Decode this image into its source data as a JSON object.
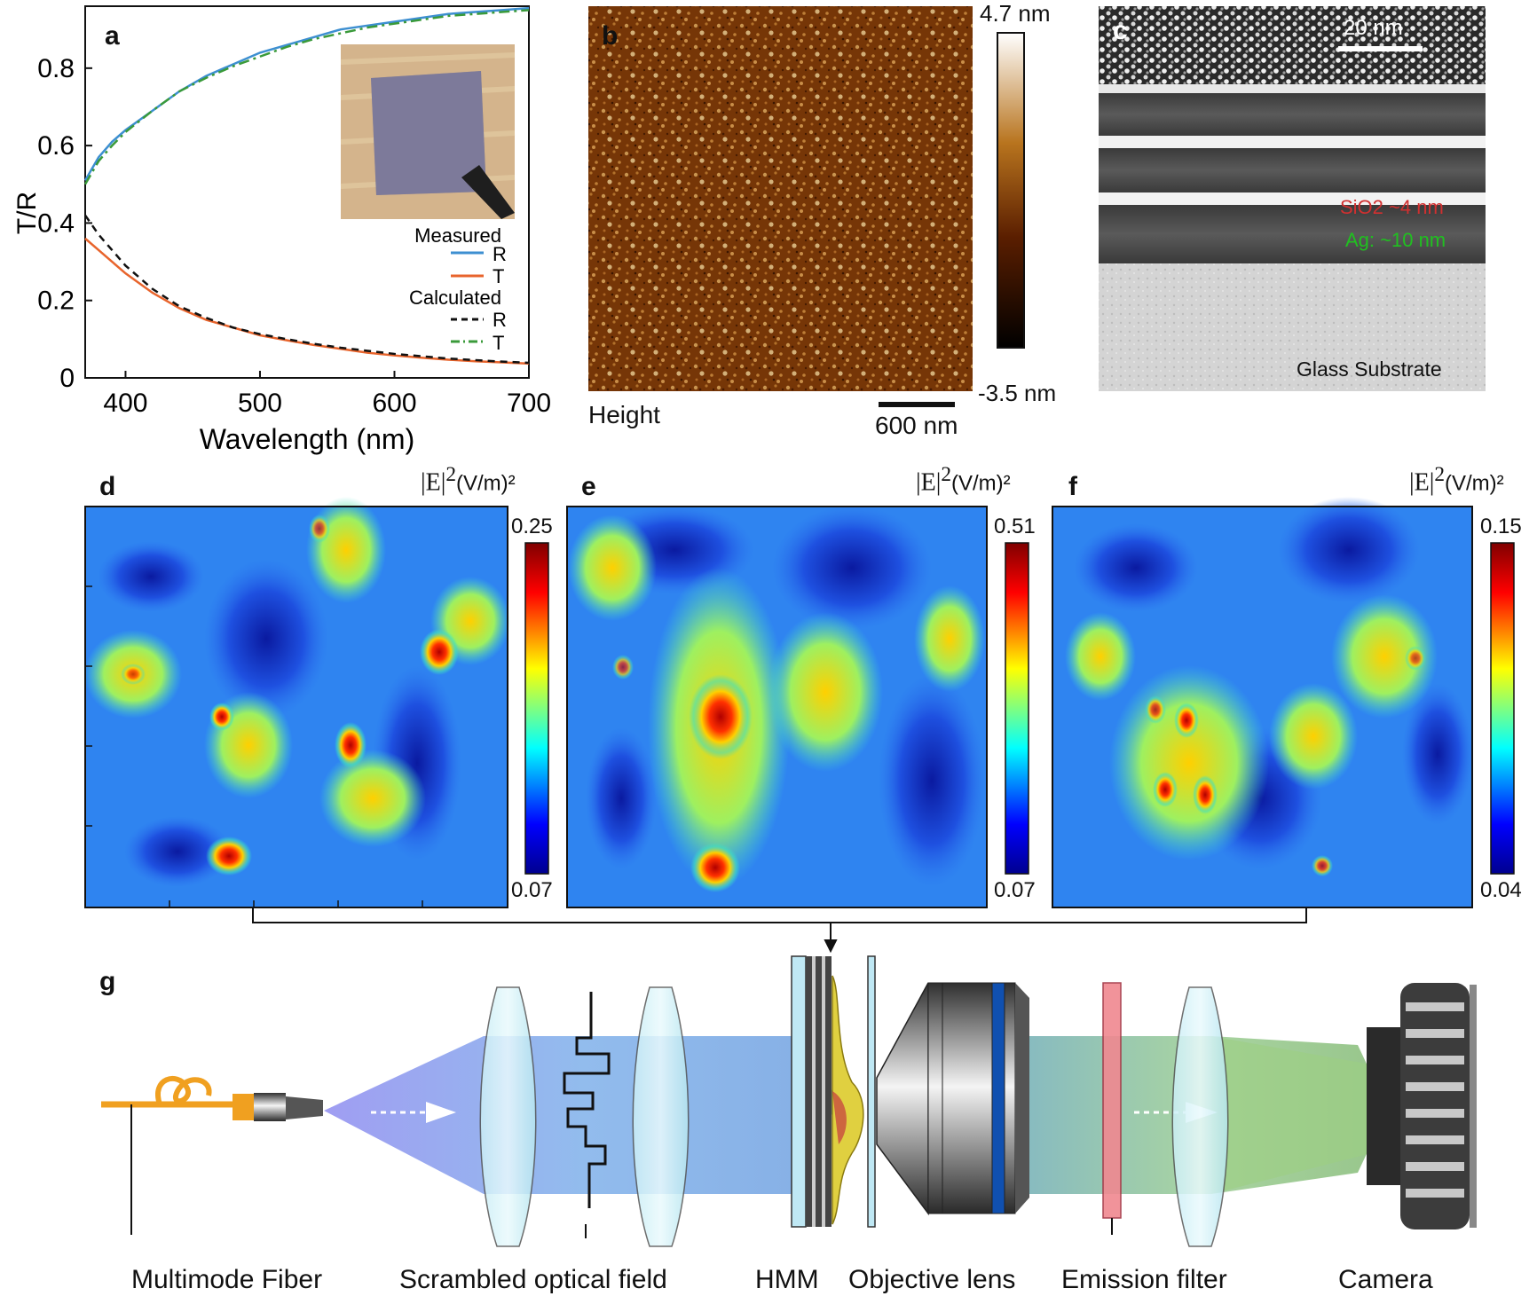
{
  "panels": {
    "a": "a",
    "b": "b",
    "c": "c",
    "d": "d",
    "e": "e",
    "f": "f",
    "g": "g"
  },
  "chart_data": {
    "type": "line",
    "title": "",
    "xlabel": "Wavelength (nm)",
    "ylabel": "T/R",
    "xlim": [
      370,
      700
    ],
    "ylim": [
      0,
      0.96
    ],
    "x_ticks": [
      "400",
      "500",
      "600",
      "700"
    ],
    "y_ticks": [
      "0",
      "0.2",
      "0.4",
      "0.6",
      "0.8"
    ],
    "legend": {
      "measured_title": "Measured",
      "calculated_title": "Calculated"
    },
    "x": [
      370,
      380,
      390,
      400,
      420,
      440,
      460,
      480,
      500,
      520,
      540,
      560,
      580,
      600,
      620,
      640,
      660,
      680,
      700
    ],
    "series": [
      {
        "name": "R",
        "group": "Measured",
        "color": "#3d8fd1",
        "style": "solid",
        "values": [
          0.51,
          0.57,
          0.61,
          0.64,
          0.69,
          0.74,
          0.78,
          0.81,
          0.84,
          0.86,
          0.88,
          0.9,
          0.91,
          0.92,
          0.93,
          0.94,
          0.945,
          0.95,
          0.955
        ]
      },
      {
        "name": "T",
        "group": "Measured",
        "color": "#e8642c",
        "style": "solid",
        "values": [
          0.36,
          0.33,
          0.3,
          0.27,
          0.22,
          0.18,
          0.15,
          0.13,
          0.11,
          0.097,
          0.085,
          0.075,
          0.065,
          0.058,
          0.052,
          0.047,
          0.043,
          0.04,
          0.037
        ]
      },
      {
        "name": "R",
        "group": "Calculated",
        "color": "#111111",
        "style": "dashed",
        "values": [
          0.42,
          0.37,
          0.33,
          0.29,
          0.23,
          0.185,
          0.155,
          0.13,
          0.113,
          0.1,
          0.088,
          0.078,
          0.07,
          0.062,
          0.056,
          0.05,
          0.046,
          0.042,
          0.039
        ]
      },
      {
        "name": "T",
        "group": "Calculated",
        "color": "#3a9a3a",
        "style": "dashdot",
        "values": [
          0.5,
          0.56,
          0.6,
          0.635,
          0.69,
          0.74,
          0.775,
          0.805,
          0.83,
          0.855,
          0.875,
          0.89,
          0.905,
          0.915,
          0.925,
          0.935,
          0.94,
          0.945,
          0.95
        ]
      }
    ]
  },
  "afm": {
    "height_label": "Height",
    "scale_max": "4.7 nm",
    "scale_min": "-3.5 nm",
    "scalebar_label": "600 nm"
  },
  "tem": {
    "scalebar_label": "20 nm",
    "sio2_label": "SiO2 ~4 nm",
    "ag_label": "Ag: ~10 nm",
    "substrate_label": "Glass Substrate"
  },
  "maps": [
    {
      "max": "0.25",
      "min": "0.07"
    },
    {
      "max": "0.51",
      "min": "0.07"
    },
    {
      "max": "0.15",
      "min": "0.04"
    }
  ],
  "field_label": {
    "symbol": "|E|",
    "power": "2",
    "unit": "(V/m)²"
  },
  "setup": {
    "fiber": "Multimode Fiber",
    "scrambled": "Scrambled optical field",
    "hmm": "HMM",
    "objective": "Objective lens",
    "emission": "Emission filter",
    "camera": "Camera"
  }
}
